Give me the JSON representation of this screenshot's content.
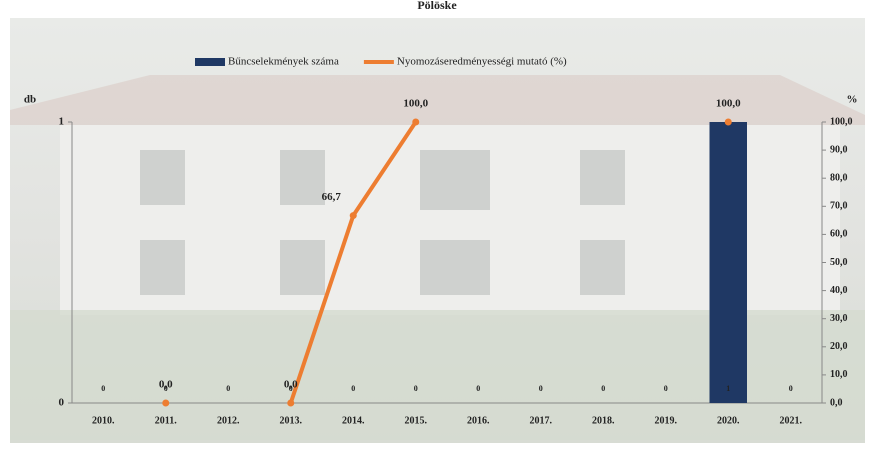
{
  "chart_data": {
    "type": "bar-line",
    "title": "Pölöske",
    "categories": [
      "2010.",
      "2011.",
      "2012.",
      "2013.",
      "2014.",
      "2015.",
      "2016.",
      "2017.",
      "2018.",
      "2019.",
      "2020.",
      "2021."
    ],
    "series": [
      {
        "name": "Bűncselekmények száma",
        "type": "bar",
        "color": "#1f3864",
        "values": [
          0,
          0,
          0,
          0,
          0,
          0,
          0,
          0,
          0,
          0,
          1,
          0
        ]
      },
      {
        "name": "Nyomozáseredményességi mutató (%)",
        "type": "line",
        "axis": "y2",
        "color": "#ed7d31",
        "values": [
          null,
          0,
          null,
          0,
          66.7,
          100,
          null,
          null,
          null,
          null,
          100,
          null
        ],
        "value_labels": [
          null,
          "0,0",
          null,
          "0,0",
          "66,7",
          "100,0",
          null,
          null,
          null,
          null,
          "100,0",
          null
        ]
      }
    ],
    "ylabel": "db",
    "ylim": [
      0,
      1
    ],
    "yticks": [
      0,
      1
    ],
    "y2label": "%",
    "y2lim": [
      0,
      100
    ],
    "y2ticks": [
      {
        "value": 0,
        "label": "0,0"
      },
      {
        "value": 10,
        "label": "10,0"
      },
      {
        "value": 20,
        "label": "20,0"
      },
      {
        "value": 30,
        "label": "30,0"
      },
      {
        "value": 40,
        "label": "40,0"
      },
      {
        "value": 50,
        "label": "50,0"
      },
      {
        "value": 60,
        "label": "60,0"
      },
      {
        "value": 70,
        "label": "70,0"
      },
      {
        "value": 80,
        "label": "80,0"
      },
      {
        "value": 90,
        "label": "90,0"
      },
      {
        "value": 100,
        "label": "100,0"
      }
    ]
  }
}
